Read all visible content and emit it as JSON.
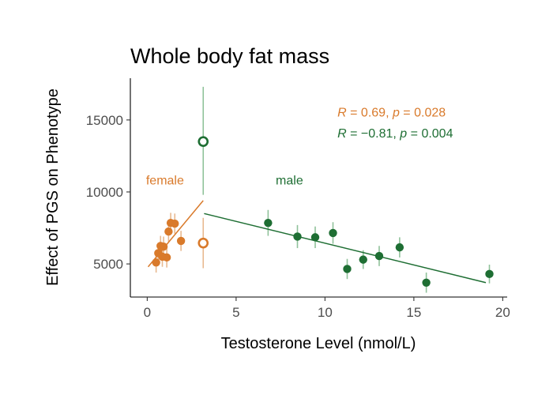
{
  "chart_data": {
    "type": "scatter",
    "title": "Whole body fat mass",
    "xlabel": "Testosterone Level (nmol/L)",
    "ylabel": "Effect of PGS on Phenotype",
    "xlim": [
      -0.95,
      20.25
    ],
    "ylim": [
      2700,
      17900
    ],
    "xticks": [
      0,
      5,
      10,
      15,
      20
    ],
    "yticks": [
      5000,
      10000,
      15000
    ],
    "grid": false,
    "legend": "none",
    "colors": {
      "female": "#d97a2b",
      "male": "#1e6e33",
      "female_err": "#e8b98f",
      "male_err": "#8fc29a"
    },
    "series": [
      {
        "name": "female",
        "color": "#d97a2b",
        "points": [
          {
            "x": 0.5,
            "y": 5100,
            "lo": 4400,
            "hi": 5800
          },
          {
            "x": 0.62,
            "y": 5750,
            "lo": 5050,
            "hi": 6450
          },
          {
            "x": 0.75,
            "y": 6250,
            "lo": 5550,
            "hi": 6950
          },
          {
            "x": 0.85,
            "y": 5500,
            "lo": 4800,
            "hi": 6200
          },
          {
            "x": 0.92,
            "y": 6200,
            "lo": 5500,
            "hi": 6900
          },
          {
            "x": 1.1,
            "y": 5450,
            "lo": 4750,
            "hi": 6150
          },
          {
            "x": 1.2,
            "y": 7250,
            "lo": 6550,
            "hi": 7950
          },
          {
            "x": 1.32,
            "y": 7850,
            "lo": 7150,
            "hi": 8550
          },
          {
            "x": 1.55,
            "y": 7800,
            "lo": 7100,
            "hi": 8500
          },
          {
            "x": 1.9,
            "y": 6600,
            "lo": 5900,
            "hi": 7300
          }
        ],
        "outlier": {
          "x": 3.15,
          "y": 6450,
          "lo": 4700,
          "hi": 8200
        },
        "fit": {
          "x0": 0.05,
          "y0": 4800,
          "x1": 3.15,
          "y1": 9400
        },
        "label": "female",
        "label_pos": {
          "x": 1.0,
          "y": 10800
        }
      },
      {
        "name": "male",
        "color": "#1e6e33",
        "points": [
          {
            "x": 6.8,
            "y": 7850,
            "lo": 6950,
            "hi": 8750
          },
          {
            "x": 8.45,
            "y": 6900,
            "lo": 6100,
            "hi": 7700
          },
          {
            "x": 9.45,
            "y": 6850,
            "lo": 6100,
            "hi": 7600
          },
          {
            "x": 10.45,
            "y": 7150,
            "lo": 6400,
            "hi": 7900
          },
          {
            "x": 11.25,
            "y": 4650,
            "lo": 3950,
            "hi": 5350
          },
          {
            "x": 12.15,
            "y": 5300,
            "lo": 4650,
            "hi": 5950
          },
          {
            "x": 13.05,
            "y": 5550,
            "lo": 4850,
            "hi": 6250
          },
          {
            "x": 14.2,
            "y": 6150,
            "lo": 5450,
            "hi": 6850
          },
          {
            "x": 15.7,
            "y": 3700,
            "lo": 3000,
            "hi": 4400
          },
          {
            "x": 19.25,
            "y": 4300,
            "lo": 3650,
            "hi": 4950
          }
        ],
        "outlier": {
          "x": 3.15,
          "y": 13500,
          "lo": 9800,
          "hi": 17300
        },
        "fit": {
          "x0": 3.2,
          "y0": 8500,
          "x1": 19.05,
          "y1": 3700
        },
        "label": "male",
        "label_pos": {
          "x": 8.0,
          "y": 10800
        }
      }
    ],
    "annotations": [
      {
        "series": "female",
        "r_label": "R",
        "r_text": " = 0.69, ",
        "p_label": "p",
        "p_text": " = 0.028",
        "x": 10.7,
        "y": 15500
      },
      {
        "series": "male",
        "r_label": "R",
        "r_text": " = −0.81, ",
        "p_label": "p",
        "p_text": " = 0.004",
        "x": 10.7,
        "y": 14050
      }
    ]
  }
}
